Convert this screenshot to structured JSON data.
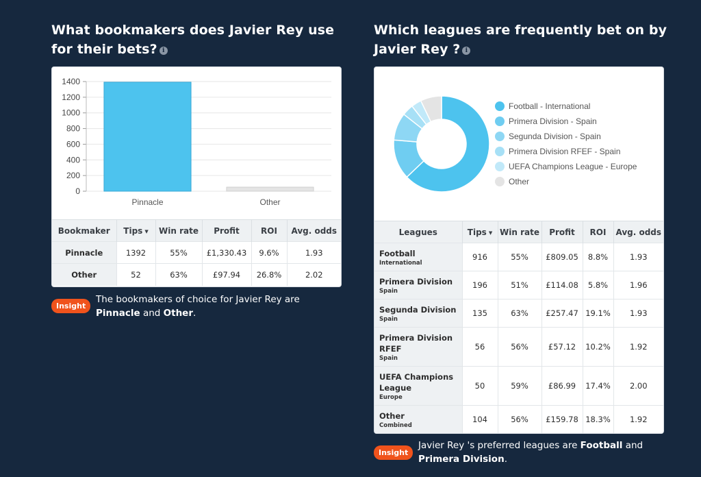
{
  "left": {
    "heading_line1": "What bookmakers does Javier Rey use",
    "heading_line2": "for their bets?",
    "info_icon": "info-icon",
    "chart_data": {
      "type": "bar",
      "categories": [
        "Pinnacle",
        "Other"
      ],
      "values": [
        1392,
        52
      ],
      "ylim": [
        0,
        1400
      ],
      "yticks": [
        0,
        200,
        400,
        600,
        800,
        1000,
        1200,
        1400
      ],
      "colors": [
        "#4dc3ee",
        "#e4e4e4"
      ],
      "grid": true
    },
    "table": {
      "headers": [
        "Bookmaker",
        "Tips",
        "Win rate",
        "Profit",
        "ROI",
        "Avg. odds"
      ],
      "sort_indicator": "▼",
      "rows": [
        [
          "Pinnacle",
          "1392",
          "55%",
          "£1,330.43",
          "9.6%",
          "1.93"
        ],
        [
          "Other",
          "52",
          "63%",
          "£97.94",
          "26.8%",
          "2.02"
        ]
      ]
    },
    "insight": {
      "badge": "Insight",
      "text_prefix": "The bookmakers of choice for Javier Rey are",
      "bold1": "Pinnacle",
      "and": "and",
      "bold2": "Other",
      "end": "."
    }
  },
  "right": {
    "heading_line1": "Which leagues are frequently bet on by",
    "heading_line2": "Javier Rey ?",
    "info_icon": "info-icon",
    "chart_data": {
      "type": "pie",
      "labels": [
        "Football - International",
        "Primera Division - Spain",
        "Segunda Division - Spain",
        "Primera Division RFEF - Spain",
        "UEFA Champions League - Europe",
        "Other"
      ],
      "values": [
        916,
        196,
        135,
        56,
        50,
        104
      ],
      "colors": [
        "#4dc3ee",
        "#6fcdf1",
        "#8ed7f4",
        "#a7e0f6",
        "#c1e9f9",
        "#e4e4e4"
      ],
      "legend_position": "right"
    },
    "table": {
      "headers": [
        "Leagues",
        "Tips",
        "Win rate",
        "Profit",
        "ROI",
        "Avg. odds"
      ],
      "sort_indicator": "▼",
      "rows": [
        {
          "name": "Football",
          "sub": "International",
          "cells": [
            "916",
            "55%",
            "£809.05",
            "8.8%",
            "1.93"
          ]
        },
        {
          "name": "Primera Division",
          "sub": "Spain",
          "cells": [
            "196",
            "51%",
            "£114.08",
            "5.8%",
            "1.96"
          ]
        },
        {
          "name": "Segunda Division",
          "sub": "Spain",
          "cells": [
            "135",
            "63%",
            "£257.47",
            "19.1%",
            "1.93"
          ]
        },
        {
          "name": "Primera Division RFEF",
          "sub": "Spain",
          "cells": [
            "56",
            "56%",
            "£57.12",
            "10.2%",
            "1.92"
          ]
        },
        {
          "name": "UEFA Champions League",
          "sub": "Europe",
          "cells": [
            "50",
            "59%",
            "£86.99",
            "17.4%",
            "2.00"
          ]
        },
        {
          "name": "Other",
          "sub": "Combined",
          "cells": [
            "104",
            "56%",
            "£159.78",
            "18.3%",
            "1.92"
          ]
        }
      ]
    },
    "insight": {
      "badge": "Insight",
      "text_prefix": "Javier Rey 's preferred leagues are",
      "bold1": "Football",
      "and": "and",
      "bold2": "Primera Division",
      "end": "."
    }
  }
}
